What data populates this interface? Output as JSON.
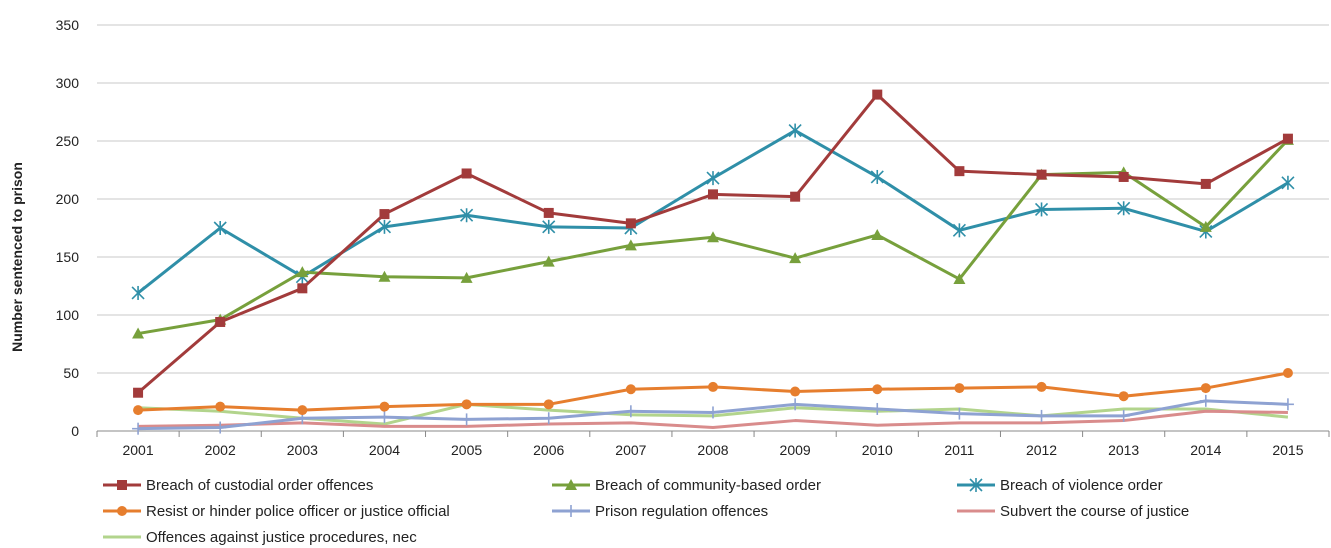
{
  "chart_data": {
    "type": "line",
    "ylabel": "Number sentenced to prison",
    "xlabel": "",
    "ylim": [
      0,
      350
    ],
    "yticks": [
      "0",
      "50",
      "100",
      "150",
      "200",
      "250",
      "300",
      "350"
    ],
    "categories": [
      "2001",
      "2002",
      "2003",
      "2004",
      "2005",
      "2006",
      "2007",
      "2008",
      "2009",
      "2010",
      "2011",
      "2012",
      "2013",
      "2014",
      "2015"
    ],
    "grid": "horizontal",
    "legend_position": "bottom",
    "series": [
      {
        "name": "Breach of custodial order offences",
        "color": "#A23B3B",
        "marker": "square",
        "values": [
          33,
          94,
          123,
          187,
          222,
          188,
          179,
          204,
          202,
          290,
          224,
          221,
          219,
          213,
          252
        ]
      },
      {
        "name": "Breach of community-based order",
        "color": "#77A03C",
        "marker": "triangle",
        "values": [
          84,
          96,
          137,
          133,
          132,
          146,
          160,
          167,
          149,
          169,
          131,
          221,
          223,
          176,
          251
        ]
      },
      {
        "name": "Breach of violence order",
        "color": "#2F8FA8",
        "marker": "asterisk",
        "values": [
          119,
          175,
          133,
          176,
          186,
          176,
          175,
          218,
          259,
          219,
          173,
          191,
          192,
          172,
          214
        ]
      },
      {
        "name": "Resist or hinder police officer or justice official",
        "color": "#E67E2E",
        "marker": "circle",
        "values": [
          18,
          21,
          18,
          21,
          23,
          23,
          36,
          38,
          34,
          36,
          37,
          38,
          30,
          37,
          50
        ]
      },
      {
        "name": "Prison regulation offences",
        "color": "#8EA2D2",
        "marker": "plus",
        "values": [
          2,
          3,
          11,
          12,
          10,
          11,
          17,
          16,
          23,
          19,
          15,
          13,
          13,
          26,
          23
        ]
      },
      {
        "name": "Subvert the course of justice",
        "color": "#D98C8C",
        "marker": "none",
        "values": [
          4,
          5,
          7,
          4,
          4,
          6,
          7,
          3,
          9,
          5,
          7,
          7,
          9,
          17,
          16
        ]
      },
      {
        "name": "Offences against justice procedures, nec",
        "color": "#B2D48C",
        "marker": "none",
        "values": [
          20,
          17,
          11,
          6,
          23,
          18,
          14,
          13,
          20,
          17,
          19,
          13,
          19,
          19,
          12
        ]
      }
    ]
  }
}
